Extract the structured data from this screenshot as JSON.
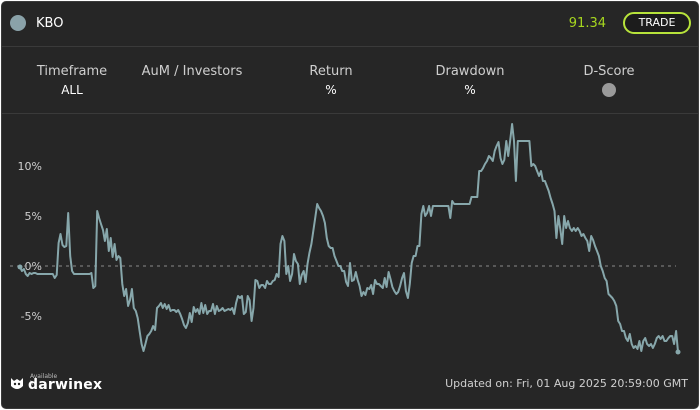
{
  "header": {
    "symbol": "KBO",
    "price": "91.34",
    "trade_label": "TRADE"
  },
  "stats": [
    {
      "label": "Timeframe",
      "value": "ALL"
    },
    {
      "label": "AuM / Investors",
      "value": ""
    },
    {
      "label": "Return",
      "value": "%"
    },
    {
      "label": "Drawdown",
      "value": "%"
    },
    {
      "label": "D-Score",
      "value": ""
    }
  ],
  "icons": {
    "status_dot": "status-dot-icon",
    "dscore": "dscore-badge-icon",
    "logo": "darwinex-logo-icon"
  },
  "colors": {
    "background": "#262626",
    "line": "#87a7ab",
    "accent": "#b7e33b",
    "price": "#a6d61f"
  },
  "chart_data": {
    "type": "line",
    "yticks": [
      "10%",
      "5%",
      "0%",
      "-5%"
    ],
    "yvalues": [
      10,
      5,
      0,
      -5
    ],
    "ylim": [
      -9,
      14
    ],
    "grid": false,
    "series": [
      {
        "values": [
          -0.1,
          -0.5,
          -0.3,
          -0.8,
          -1.0,
          -0.7,
          -0.8,
          -0.7,
          -0.7,
          -0.8,
          -0.8,
          -0.8,
          -0.8,
          -0.8,
          -0.8,
          -0.8,
          -0.8,
          -0.8,
          -1.2,
          -0.9,
          2.3,
          3.2,
          2.1,
          1.9,
          2.0,
          5.3,
          1.0,
          -0.5,
          -0.8,
          -0.8,
          -0.8,
          -0.8,
          -0.8,
          -0.8,
          -0.8,
          -0.8,
          -0.8,
          -0.7,
          -2.2,
          -2.0,
          5.5,
          4.8,
          4.2,
          3.6,
          2.5,
          3.7,
          1.5,
          2.8,
          0.9,
          2.2,
          0.6,
          1.0,
          0.8,
          -1.8,
          -3.0,
          -2.3,
          -4.0,
          -3.4,
          -2.3,
          -4.2,
          -4.5,
          -5.2,
          -6.5,
          -7.8,
          -8.5,
          -7.8,
          -7.0,
          -6.8,
          -6.5,
          -6.0,
          -6.4,
          -4.2,
          -4.0,
          -3.7,
          -4.2,
          -3.8,
          -4.3,
          -3.9,
          -4.5,
          -4.4,
          -4.4,
          -4.6,
          -4.4,
          -4.8,
          -5.3,
          -5.9,
          -6.2,
          -5.7,
          -4.7,
          -5.6,
          -4.1,
          -4.6,
          -4.3,
          -4.8,
          -3.7,
          -4.7,
          -3.9,
          -4.8,
          -4.5,
          -4.5,
          -3.8,
          -4.8,
          -4.0,
          -4.5,
          -4.4,
          -4.2,
          -4.5,
          -4.4,
          -4.3,
          -4.4,
          -4.2,
          -4.8,
          -3.7,
          -3.0,
          -3.2,
          -3.0,
          -4.8,
          -4.6,
          -3.0,
          -3.4,
          -5.5,
          -4.2,
          -1.4,
          -1.5,
          -2.2,
          -1.9,
          -1.9,
          -2.2,
          -1.5,
          -1.8,
          -1.8,
          -1.5,
          -1.4,
          -0.8,
          -1.1,
          2.2,
          3.0,
          2.5,
          -0.8,
          0.0,
          -1.5,
          -0.8,
          1.2,
          0.5,
          0.2,
          -1.8,
          -0.9,
          -0.5,
          -1.6,
          0.2,
          1.3,
          2.2,
          3.5,
          4.8,
          6.2,
          5.8,
          5.5,
          5.0,
          4.3,
          2.8,
          2.0,
          1.8,
          1.8,
          1.0,
          0.5,
          0.0,
          0.0,
          -0.5,
          -0.5,
          -1.6,
          -2.0,
          0.3,
          -1.5,
          -1.4,
          -0.6,
          -1.4,
          -2.0,
          -3.0,
          -2.6,
          -2.9,
          -2.2,
          -2.3,
          -1.9,
          -2.8,
          -1.4,
          -1.8,
          -1.8,
          -2.0,
          -2.2,
          -1.2,
          -2.1,
          -0.6,
          -1.3,
          -2.1,
          -2.5,
          -2.8,
          -2.6,
          -2.0,
          -1.2,
          -0.7,
          -2.5,
          -3.2,
          -1.8,
          0.3,
          1.0,
          1.0,
          2.0,
          2.0,
          5.2,
          6.0,
          5.0,
          5.3,
          6.0,
          5.0,
          6.0,
          6.0,
          6.0,
          6.0,
          6.0,
          6.0,
          6.0,
          6.0,
          6.0,
          4.8,
          6.5,
          6.2,
          6.2,
          6.2,
          6.2,
          6.2,
          6.2,
          6.2,
          6.2,
          6.2,
          6.9,
          6.9,
          6.9,
          6.9,
          9.5,
          9.5,
          9.8,
          10.2,
          10.5,
          11.0,
          10.8,
          10.5,
          11.5,
          12.0,
          12.4,
          10.8,
          10.2,
          10.6,
          12.5,
          11.0,
          12.5,
          14.2,
          12.5,
          8.5,
          12.5,
          12.5,
          12.5,
          12.5,
          12.5,
          12.5,
          12.5,
          10.0,
          10.2,
          10.0,
          9.5,
          9.0,
          9.5,
          8.5,
          8.5,
          8.0,
          7.5,
          6.8,
          6.2,
          5.5,
          2.8,
          5.0,
          3.7,
          2.2,
          5.0,
          3.8,
          4.5,
          3.8,
          3.5,
          3.8,
          3.5,
          3.8,
          3.5,
          3.0,
          3.2,
          2.8,
          2.5,
          1.5,
          3.0,
          2.6,
          2.0,
          1.5,
          1.0,
          0.0,
          -0.5,
          -1.2,
          -1.5,
          -2.8,
          -3.0,
          -3.2,
          -3.5,
          -4.0,
          -5.5,
          -5.8,
          -6.5,
          -6.5,
          -7.2,
          -7.5,
          -6.8,
          -7.8,
          -8.2,
          -8.0,
          -8.3,
          -7.5,
          -8.5,
          -7.5,
          -7.2,
          -7.8,
          -8.0,
          -7.8,
          -8.2,
          -7.8,
          -7.2,
          -7.0,
          -7.3,
          -7.0,
          -7.5,
          -7.5,
          -7.2,
          -7.0,
          -7.0,
          -7.8,
          -6.5,
          -8.6
        ]
      }
    ]
  },
  "footer": {
    "logo_small": "Available in",
    "logo_text": "darwinex",
    "updated": "Updated on: Fri, 01 Aug 2025 20:59:00 GMT"
  }
}
